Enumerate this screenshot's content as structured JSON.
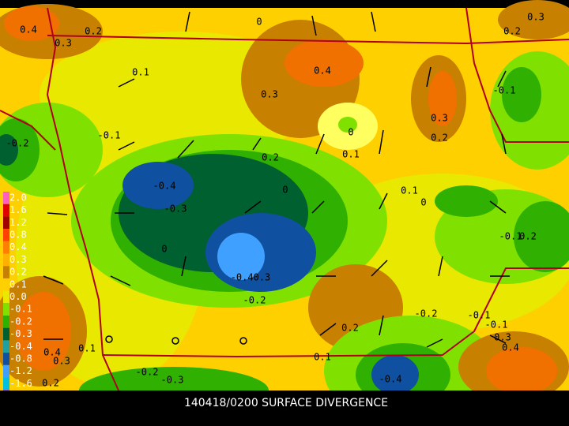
{
  "caption": "140418/0200 SURFACE DIVERGENCE",
  "colorbar": [
    "2.0",
    "1.6",
    "1.2",
    "0.8",
    "0.4",
    "0.3",
    "0.2",
    "0.1",
    "0.0",
    "-0.1",
    "-0.2",
    "-0.3",
    "-0.4",
    "-0.8",
    "-1.2",
    "-1.6",
    "-2.0"
  ],
  "contour_labels": [
    "0.4",
    "0.3",
    "0.2",
    "0",
    "0.3",
    "0.1",
    "0.4",
    "0.3",
    "0.2",
    "0",
    "0.1",
    "0.3",
    "0.2",
    "-0.1",
    "-0.1",
    "-0.2",
    "-0.4",
    "-0.3",
    "0",
    "0.1",
    "0",
    "-0.1",
    "0.2",
    "0",
    "-0.40.3",
    "-0.2",
    "0.2",
    "-0.2",
    "-0.1",
    "-0.1",
    "0.3",
    "0.4",
    "0.4",
    "0.3",
    "0.2",
    "0.1",
    "0.1",
    "-0.2",
    "-0.3",
    "-0.4",
    "0.2"
  ]
}
